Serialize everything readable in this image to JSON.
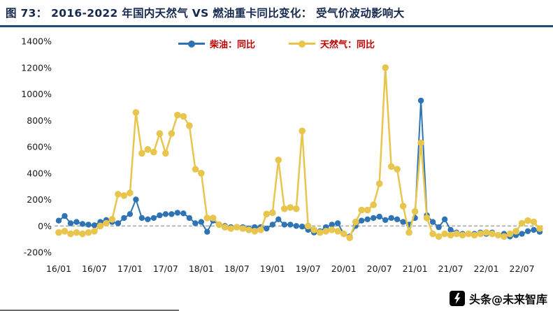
{
  "header": {
    "title": "图  73：  2016-2022 年国内天然气 VS 燃油重卡同比变化：  受气价波动影响大"
  },
  "watermark": {
    "text": "头条@未来智库"
  },
  "colors": {
    "diesel": "#2e74b5",
    "gas": "#e8c54d",
    "legend_text": "#c00000",
    "title": "#15294e",
    "title_rule": "#1f4e79",
    "zero_line": "#808080",
    "axis_text": "#1a1a1a"
  },
  "chart_data": {
    "type": "line",
    "title": "2016-2022 年国内天然气 VS 燃油重卡同比变化",
    "ylim": [
      -200,
      1400
    ],
    "ytick_step": 200,
    "ytick_suffix": "%",
    "xtick_months": [
      "01",
      "07"
    ],
    "legend_position": "top",
    "zero_line": "dashed",
    "grid": "off",
    "x": [
      "16/01",
      "16/02",
      "16/03",
      "16/04",
      "16/05",
      "16/06",
      "16/07",
      "16/08",
      "16/09",
      "16/10",
      "16/11",
      "16/12",
      "17/01",
      "17/02",
      "17/03",
      "17/04",
      "17/05",
      "17/06",
      "17/07",
      "17/08",
      "17/09",
      "17/10",
      "17/11",
      "17/12",
      "18/01",
      "18/02",
      "18/03",
      "18/04",
      "18/05",
      "18/06",
      "18/07",
      "18/08",
      "18/09",
      "18/10",
      "18/11",
      "18/12",
      "19/01",
      "19/02",
      "19/03",
      "19/04",
      "19/05",
      "19/06",
      "19/07",
      "19/08",
      "19/09",
      "19/10",
      "19/11",
      "19/12",
      "20/01",
      "20/02",
      "20/03",
      "20/04",
      "20/05",
      "20/06",
      "20/07",
      "20/08",
      "20/09",
      "20/10",
      "20/11",
      "20/12",
      "21/01",
      "21/02",
      "21/03",
      "21/04",
      "21/05",
      "21/06",
      "21/07",
      "21/08",
      "21/09",
      "21/10",
      "21/11",
      "21/12",
      "22/01",
      "22/02",
      "22/03",
      "22/04",
      "22/05",
      "22/06",
      "22/07",
      "22/08",
      "22/09",
      "22/10"
    ],
    "series": [
      {
        "name": "柴油：同比",
        "color_key": "diesel",
        "line_width": 2,
        "marker_r": 4.2,
        "values": [
          40,
          75,
          20,
          30,
          15,
          10,
          5,
          30,
          45,
          30,
          20,
          60,
          90,
          200,
          60,
          50,
          60,
          80,
          90,
          90,
          100,
          95,
          60,
          20,
          30,
          -45,
          40,
          10,
          0,
          -10,
          -10,
          -10,
          -20,
          -10,
          -10,
          -20,
          10,
          50,
          10,
          10,
          0,
          -5,
          -30,
          -50,
          -40,
          -10,
          10,
          20,
          -60,
          -80,
          0,
          40,
          50,
          60,
          70,
          45,
          60,
          50,
          30,
          10,
          60,
          950,
          80,
          30,
          -10,
          50,
          -30,
          -50,
          -60,
          -60,
          -60,
          -50,
          -60,
          -50,
          -70,
          -60,
          -80,
          -70,
          -60,
          -40,
          -30,
          -45
        ]
      },
      {
        "name": "天然气：同比",
        "color_key": "gas",
        "line_width": 2.5,
        "marker_r": 4.8,
        "values": [
          -50,
          -40,
          -60,
          -50,
          -60,
          -50,
          -40,
          0,
          20,
          50,
          240,
          230,
          250,
          860,
          550,
          580,
          560,
          700,
          550,
          700,
          840,
          830,
          760,
          430,
          400,
          60,
          60,
          10,
          -10,
          -20,
          -10,
          -20,
          -30,
          -40,
          -30,
          90,
          100,
          500,
          130,
          140,
          130,
          720,
          0,
          -30,
          -50,
          -40,
          -30,
          -40,
          -60,
          -90,
          30,
          120,
          120,
          160,
          320,
          1200,
          450,
          430,
          150,
          -50,
          110,
          630,
          60,
          -60,
          -80,
          -60,
          -70,
          -60,
          -70,
          -60,
          -70,
          -60,
          -50,
          -60,
          -70,
          -80,
          -60,
          -40,
          20,
          40,
          30,
          -20
        ]
      }
    ]
  }
}
